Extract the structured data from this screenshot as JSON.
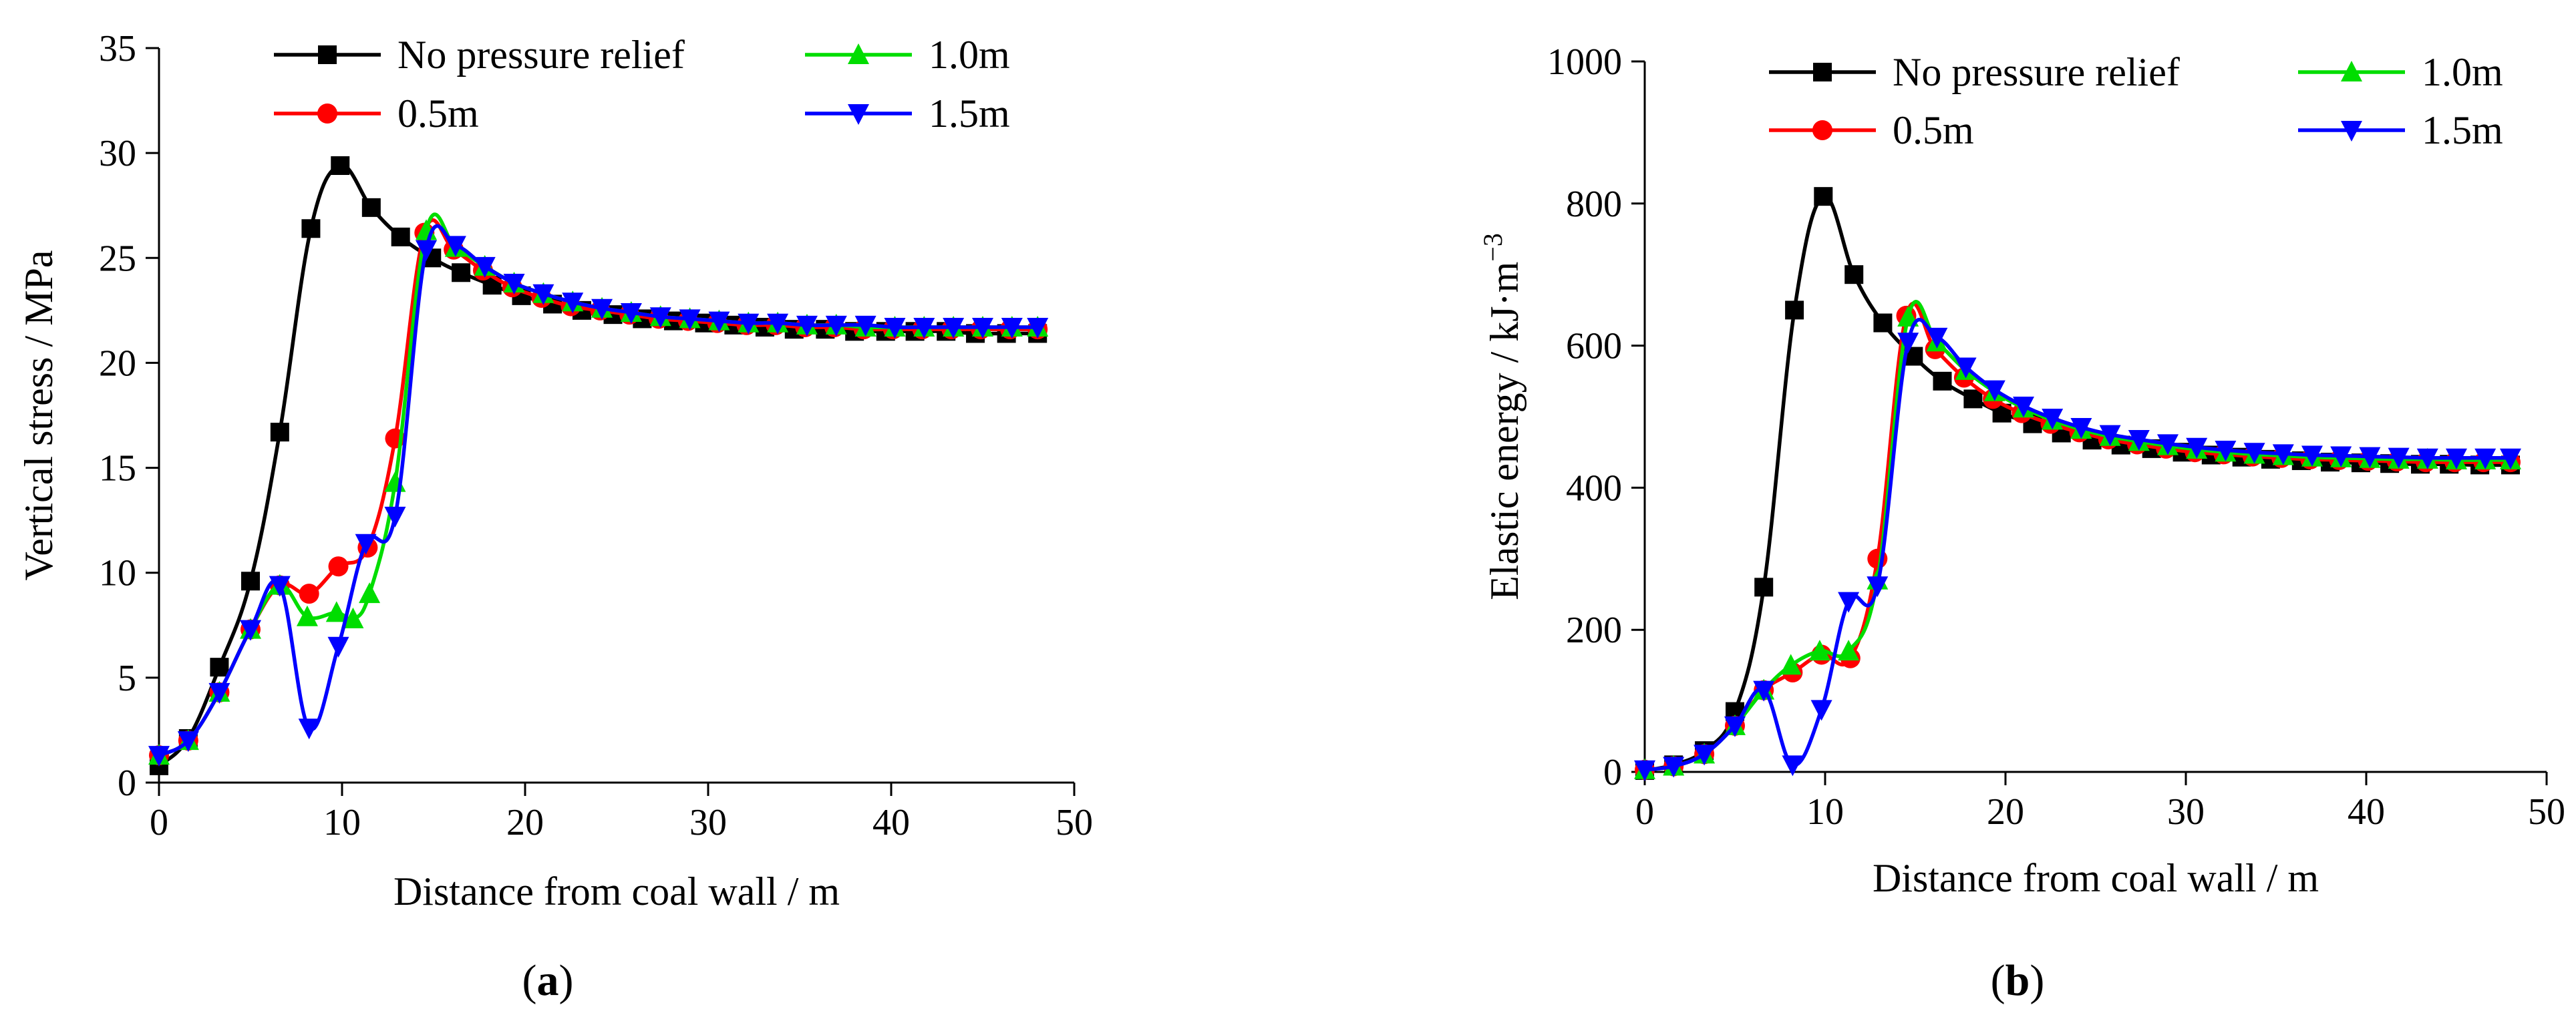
{
  "figure": {
    "panels": [
      {
        "label_open": "(",
        "label_letter": "a",
        "label_close": ")"
      },
      {
        "label_open": "(",
        "label_letter": "b",
        "label_close": ")"
      }
    ]
  },
  "chart_data": [
    {
      "type": "line",
      "panel": "a",
      "title": "",
      "xlabel": "Distance from coal wall / m",
      "ylabel": "Vertical stress / MPa",
      "xlim": [
        0,
        50
      ],
      "ylim": [
        0,
        35
      ],
      "xticks": [
        0,
        10,
        20,
        30,
        40,
        50
      ],
      "yticks": [
        0,
        5,
        10,
        15,
        20,
        25,
        30,
        35
      ],
      "legend_position": "top",
      "series": [
        {
          "name": "No pressure relief",
          "color": "#000000",
          "marker": "square",
          "x": [
            0,
            1.6,
            3.3,
            5.0,
            6.6,
            8.3,
            9.9,
            11.6,
            13.2,
            14.9,
            16.5,
            18.2,
            19.8,
            21.5,
            23.1,
            24.8,
            26.4,
            28.1,
            29.8,
            31.4,
            33.1,
            34.7,
            36.4,
            38.0,
            39.7,
            41.3,
            43.0,
            44.6,
            46.3,
            48.0
          ],
          "y": [
            0.8,
            2.1,
            5.5,
            9.6,
            16.7,
            26.4,
            29.4,
            27.4,
            26.0,
            25.0,
            24.3,
            23.7,
            23.2,
            22.8,
            22.5,
            22.3,
            22.1,
            22.0,
            21.9,
            21.8,
            21.7,
            21.6,
            21.6,
            21.5,
            21.5,
            21.5,
            21.5,
            21.4,
            21.4,
            21.4
          ]
        },
        {
          "name": "0.5m",
          "color": "#ff0000",
          "marker": "circle",
          "x": [
            0,
            1.6,
            3.3,
            5.0,
            6.6,
            8.2,
            9.8,
            11.4,
            12.9,
            14.5,
            16.1,
            17.7,
            19.3,
            20.9,
            22.5,
            24.1,
            25.7,
            27.3,
            28.9,
            30.5,
            32.1,
            33.7,
            35.3,
            36.9,
            38.5,
            40.1,
            41.7,
            43.3,
            44.9,
            46.5,
            48.0
          ],
          "y": [
            1.3,
            2.0,
            4.3,
            7.3,
            9.4,
            9.0,
            10.3,
            11.2,
            16.4,
            26.2,
            25.4,
            24.4,
            23.6,
            23.1,
            22.7,
            22.5,
            22.3,
            22.1,
            22.0,
            21.9,
            21.8,
            21.8,
            21.7,
            21.7,
            21.6,
            21.6,
            21.6,
            21.6,
            21.6,
            21.6,
            21.6
          ]
        },
        {
          "name": "1.0m",
          "color": "#00dd00",
          "marker": "triangle-up",
          "x": [
            0,
            1.6,
            3.3,
            5.0,
            6.6,
            8.1,
            9.7,
            10.6,
            11.5,
            12.9,
            14.6,
            16.2,
            17.8,
            19.4,
            21.0,
            22.6,
            24.2,
            25.8,
            27.4,
            29.0,
            30.6,
            32.2,
            33.8,
            35.4,
            37.0,
            38.6,
            40.2,
            41.8,
            43.4,
            45.0,
            46.6,
            48.0
          ],
          "y": [
            1.3,
            2.0,
            4.3,
            7.3,
            9.4,
            7.9,
            8.1,
            7.8,
            9.0,
            14.3,
            26.3,
            25.5,
            24.6,
            23.8,
            23.3,
            22.9,
            22.6,
            22.4,
            22.2,
            22.1,
            22.0,
            21.9,
            21.9,
            21.8,
            21.8,
            21.7,
            21.7,
            21.7,
            21.7,
            21.7,
            21.7,
            21.7
          ]
        },
        {
          "name": "1.5m",
          "color": "#0000ff",
          "marker": "triangle-down",
          "x": [
            0,
            1.6,
            3.3,
            5.0,
            6.6,
            8.2,
            9.8,
            11.3,
            12.9,
            14.6,
            16.2,
            17.8,
            19.4,
            21.0,
            22.6,
            24.2,
            25.8,
            27.4,
            29.0,
            30.6,
            32.2,
            33.8,
            35.4,
            37.0,
            38.6,
            40.2,
            41.8,
            43.4,
            45.0,
            46.6,
            48.0
          ],
          "y": [
            1.3,
            2.0,
            4.3,
            7.3,
            9.4,
            2.6,
            6.5,
            11.4,
            12.7,
            25.4,
            25.6,
            24.6,
            23.8,
            23.3,
            22.9,
            22.6,
            22.4,
            22.2,
            22.1,
            22.0,
            21.9,
            21.9,
            21.8,
            21.8,
            21.8,
            21.7,
            21.7,
            21.7,
            21.7,
            21.7,
            21.7
          ]
        }
      ]
    },
    {
      "type": "line",
      "panel": "b",
      "title": "",
      "xlabel": "Distance from coal wall / m",
      "ylabel_main": "Elastic energy / kJ·m",
      "ylabel_exp": "−3",
      "xlim": [
        0,
        50
      ],
      "ylim": [
        0,
        1000
      ],
      "xticks": [
        0,
        10,
        20,
        30,
        40,
        50
      ],
      "yticks": [
        0,
        200,
        400,
        600,
        800,
        1000
      ],
      "legend_position": "top",
      "series": [
        {
          "name": "No pressure relief",
          "color": "#000000",
          "marker": "square",
          "x": [
            0,
            1.6,
            3.3,
            5.0,
            6.6,
            8.3,
            9.9,
            11.6,
            13.2,
            14.9,
            16.5,
            18.2,
            19.8,
            21.5,
            23.1,
            24.8,
            26.4,
            28.1,
            29.8,
            31.4,
            33.1,
            34.7,
            36.4,
            38.0,
            39.7,
            41.3,
            43.0,
            44.6,
            46.3,
            48.0
          ],
          "y": [
            2,
            10,
            30,
            85,
            260,
            650,
            810,
            700,
            632,
            585,
            550,
            525,
            505,
            490,
            477,
            467,
            460,
            455,
            450,
            446,
            443,
            440,
            438,
            436,
            435,
            434,
            433,
            433,
            432,
            432
          ]
        },
        {
          "name": "0.5m",
          "color": "#ff0000",
          "marker": "circle",
          "x": [
            0,
            1.6,
            3.3,
            5.0,
            6.6,
            8.2,
            9.8,
            11.4,
            12.9,
            14.5,
            16.1,
            17.7,
            19.3,
            20.9,
            22.5,
            24.1,
            25.7,
            27.3,
            28.9,
            30.5,
            32.1,
            33.7,
            35.3,
            36.9,
            38.5,
            40.1,
            41.7,
            43.3,
            44.9,
            46.5,
            48.0
          ],
          "y": [
            3,
            8,
            25,
            65,
            115,
            140,
            165,
            160,
            300,
            642,
            595,
            555,
            525,
            505,
            490,
            478,
            468,
            461,
            455,
            450,
            447,
            444,
            442,
            440,
            439,
            438,
            437,
            436,
            436,
            436,
            436
          ]
        },
        {
          "name": "1.0m",
          "color": "#00dd00",
          "marker": "triangle-up",
          "x": [
            0,
            1.6,
            3.3,
            5.0,
            6.6,
            8.1,
            9.7,
            11.3,
            12.9,
            14.6,
            16.2,
            17.8,
            19.4,
            21.0,
            22.6,
            24.2,
            25.8,
            27.4,
            29.0,
            30.6,
            32.2,
            33.8,
            35.4,
            37.0,
            38.6,
            40.2,
            41.8,
            43.4,
            45.0,
            46.6,
            48.0
          ],
          "y": [
            3,
            8,
            25,
            65,
            115,
            150,
            170,
            170,
            270,
            640,
            605,
            565,
            535,
            512,
            495,
            482,
            472,
            465,
            459,
            454,
            450,
            447,
            445,
            443,
            442,
            441,
            440,
            440,
            439,
            439,
            439
          ]
        },
        {
          "name": "1.5m",
          "color": "#0000ff",
          "marker": "triangle-down",
          "x": [
            0,
            1.6,
            3.3,
            5.0,
            6.6,
            8.2,
            9.8,
            11.3,
            12.9,
            14.6,
            16.2,
            17.8,
            19.4,
            21.0,
            22.6,
            24.2,
            25.8,
            27.4,
            29.0,
            30.6,
            32.2,
            33.8,
            35.4,
            37.0,
            38.6,
            40.2,
            41.8,
            43.4,
            45.0,
            46.6,
            48.0
          ],
          "y": [
            3,
            8,
            25,
            65,
            115,
            10,
            88,
            240,
            262,
            605,
            612,
            570,
            538,
            515,
            498,
            485,
            475,
            468,
            462,
            457,
            453,
            450,
            448,
            446,
            445,
            444,
            443,
            442,
            442,
            442,
            442
          ]
        }
      ]
    }
  ]
}
